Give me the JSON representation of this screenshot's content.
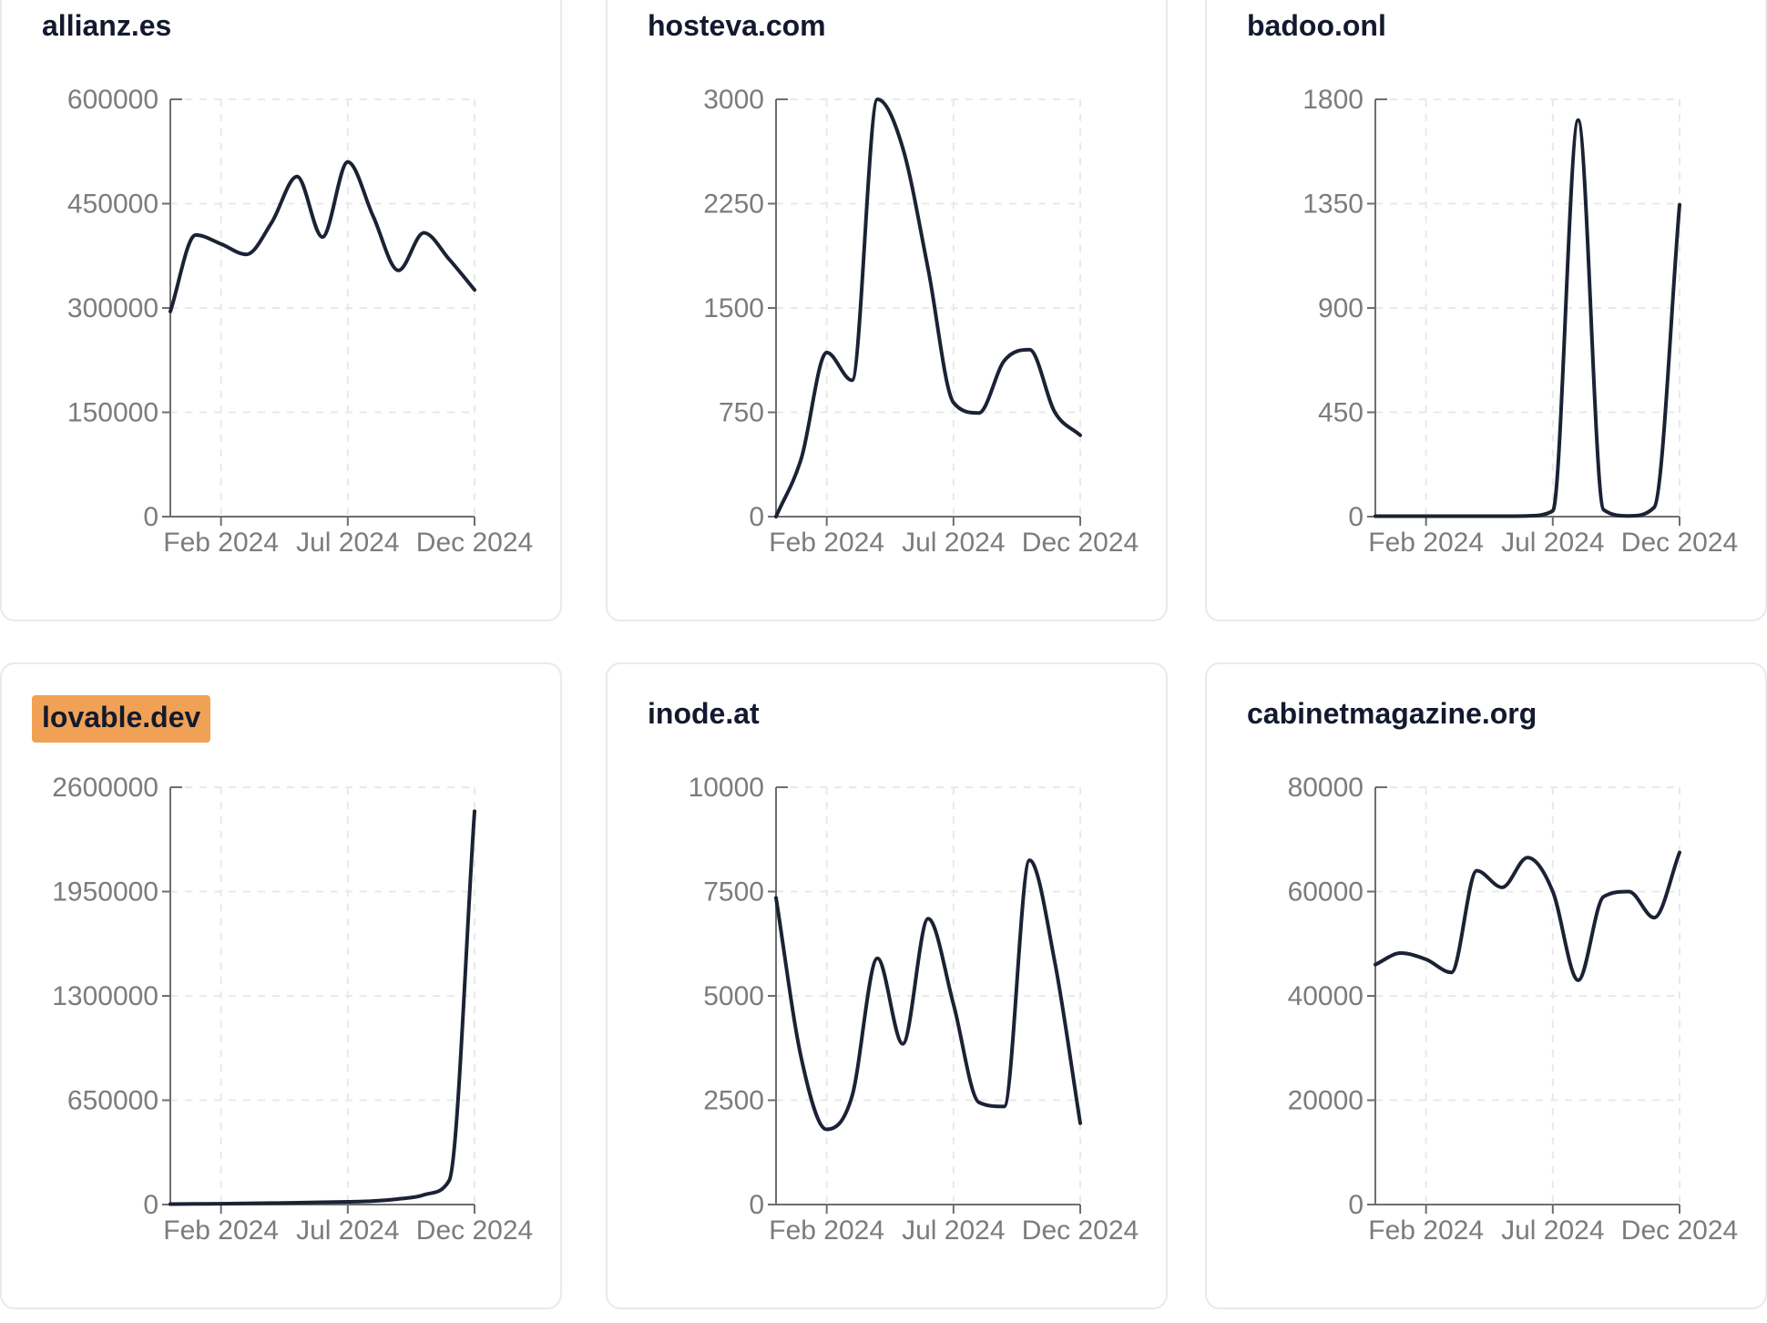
{
  "colors": {
    "line": "#1b2234",
    "title": "#131a2e",
    "axis": "#6e6e6e",
    "tick_label": "#7c7c7c",
    "grid": "#e9e9e9",
    "card_border": "#e9e9ef",
    "card_bg": "#ffffff",
    "page_bg": "#ffffff",
    "highlight_bg": "#f0a155",
    "highlight_text": "#000000"
  },
  "chart_data": [
    {
      "type": "line",
      "title": "allianz.es",
      "highlighted": false,
      "x": [
        "Dec 2023",
        "Jan 2024",
        "Feb 2024",
        "Mar 2024",
        "Apr 2024",
        "May 2024",
        "Jun 2024",
        "Jul 2024",
        "Aug 2024",
        "Sep 2024",
        "Oct 2024",
        "Nov 2024",
        "Dec 2024"
      ],
      "x_tick_labels": [
        "Feb 2024",
        "Jul 2024",
        "Dec 2024"
      ],
      "x_tick_indices": [
        2,
        7,
        12
      ],
      "ylim": [
        0,
        600000
      ],
      "y_ticks": [
        0,
        150000,
        300000,
        450000,
        600000
      ],
      "values": [
        295000,
        405000,
        392000,
        377000,
        423000,
        489000,
        402000,
        510000,
        432000,
        354000,
        408000,
        370000,
        326000
      ],
      "grid": true,
      "legend": "none"
    },
    {
      "type": "line",
      "title": "hosteva.com",
      "highlighted": false,
      "x": [
        "Dec 2023",
        "Jan 2024",
        "Feb 2024",
        "Mar 2024",
        "Apr 2024",
        "May 2024",
        "Jun 2024",
        "Jul 2024",
        "Aug 2024",
        "Sep 2024",
        "Oct 2024",
        "Nov 2024",
        "Dec 2024"
      ],
      "x_tick_labels": [
        "Feb 2024",
        "Jul 2024",
        "Dec 2024"
      ],
      "x_tick_indices": [
        2,
        7,
        12
      ],
      "ylim": [
        0,
        3000
      ],
      "y_ticks": [
        0,
        750,
        1500,
        2250,
        3000
      ],
      "values": [
        0,
        420,
        1180,
        980,
        3000,
        2650,
        1780,
        820,
        745,
        1120,
        1200,
        750,
        585
      ],
      "grid": true,
      "legend": "none"
    },
    {
      "type": "line",
      "title": "badoo.onl",
      "highlighted": false,
      "x": [
        "Dec 2023",
        "Jan 2024",
        "Feb 2024",
        "Mar 2024",
        "Apr 2024",
        "May 2024",
        "Jun 2024",
        "Jul 2024",
        "Aug 2024",
        "Sep 2024",
        "Oct 2024",
        "Nov 2024",
        "Dec 2024"
      ],
      "x_tick_labels": [
        "Feb 2024",
        "Jul 2024",
        "Dec 2024"
      ],
      "x_tick_indices": [
        2,
        7,
        12
      ],
      "ylim": [
        0,
        1800
      ],
      "y_ticks": [
        0,
        450,
        900,
        1350,
        1800
      ],
      "values": [
        2,
        2,
        2,
        2,
        2,
        2,
        3,
        25,
        1710,
        30,
        3,
        40,
        1345
      ],
      "grid": true,
      "legend": "none"
    },
    {
      "type": "line",
      "title": "lovable.dev",
      "highlighted": true,
      "x": [
        "Dec 2023",
        "Jan 2024",
        "Feb 2024",
        "Mar 2024",
        "Apr 2024",
        "May 2024",
        "Jun 2024",
        "Jul 2024",
        "Aug 2024",
        "Sep 2024",
        "Oct 2024",
        "Nov 2024",
        "Dec 2024"
      ],
      "x_tick_labels": [
        "Feb 2024",
        "Jul 2024",
        "Dec 2024"
      ],
      "x_tick_indices": [
        2,
        7,
        12
      ],
      "ylim": [
        0,
        2600000
      ],
      "y_ticks": [
        0,
        650000,
        1300000,
        1950000,
        2600000
      ],
      "values": [
        3000,
        4000,
        5000,
        7000,
        9000,
        11000,
        14000,
        17000,
        22000,
        35000,
        60000,
        150000,
        2450000
      ],
      "grid": true,
      "legend": "none"
    },
    {
      "type": "line",
      "title": "inode.at",
      "highlighted": false,
      "x": [
        "Dec 2023",
        "Jan 2024",
        "Feb 2024",
        "Mar 2024",
        "Apr 2024",
        "May 2024",
        "Jun 2024",
        "Jul 2024",
        "Aug 2024",
        "Sep 2024",
        "Oct 2024",
        "Nov 2024",
        "Dec 2024"
      ],
      "x_tick_labels": [
        "Feb 2024",
        "Jul 2024",
        "Dec 2024"
      ],
      "x_tick_indices": [
        2,
        7,
        12
      ],
      "ylim": [
        0,
        10000
      ],
      "y_ticks": [
        0,
        2500,
        5000,
        7500,
        10000
      ],
      "values": [
        7350,
        3500,
        1800,
        2600,
        5900,
        3850,
        6850,
        4800,
        2450,
        2350,
        8250,
        5800,
        1950
      ],
      "grid": true,
      "legend": "none"
    },
    {
      "type": "line",
      "title": "cabinetmagazine.org",
      "highlighted": false,
      "x": [
        "Dec 2023",
        "Jan 2024",
        "Feb 2024",
        "Mar 2024",
        "Apr 2024",
        "May 2024",
        "Jun 2024",
        "Jul 2024",
        "Aug 2024",
        "Sep 2024",
        "Oct 2024",
        "Nov 2024",
        "Dec 2024"
      ],
      "x_tick_labels": [
        "Feb 2024",
        "Jul 2024",
        "Dec 2024"
      ],
      "x_tick_indices": [
        2,
        7,
        12
      ],
      "ylim": [
        0,
        80000
      ],
      "y_ticks": [
        0,
        20000,
        40000,
        60000,
        80000
      ],
      "values": [
        46000,
        48200,
        47000,
        44500,
        64000,
        60800,
        66500,
        60000,
        43000,
        59000,
        60000,
        55000,
        67500
      ],
      "grid": true,
      "legend": "none"
    }
  ]
}
